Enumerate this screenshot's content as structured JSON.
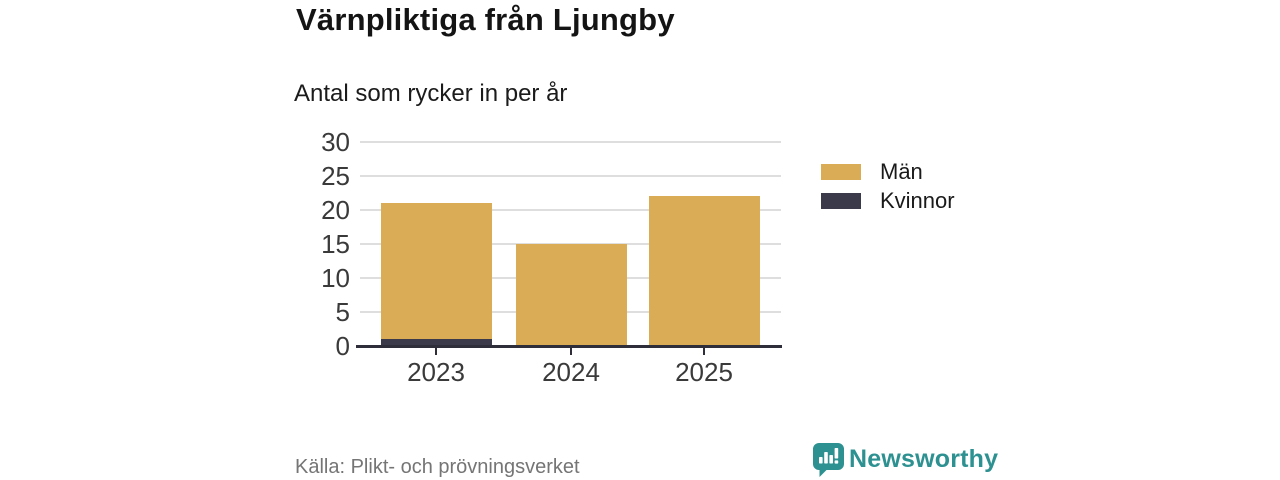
{
  "header": {
    "title": "Värnpliktiga från Ljungby",
    "subtitle": "Antal som rycker in per år"
  },
  "chart_data": {
    "type": "bar",
    "stacked": true,
    "title": "Värnpliktiga från Ljungby",
    "subtitle": "Antal som rycker in per år",
    "categories": [
      "2023",
      "2024",
      "2025"
    ],
    "series": [
      {
        "name": "Män",
        "color": "#D9AC55",
        "values": [
          20,
          15,
          22
        ]
      },
      {
        "name": "Kvinnor",
        "color": "#3B3A4B",
        "values": [
          1,
          0,
          0
        ]
      }
    ],
    "stack_order_bottom_to_top": [
      "Kvinnor",
      "Män"
    ],
    "stack_totals": [
      21,
      15,
      22
    ],
    "yticks": [
      0,
      5,
      10,
      15,
      20,
      25,
      30
    ],
    "ylim": [
      0,
      30
    ],
    "xlabel": "",
    "ylabel": "",
    "grid": "horizontal",
    "legend_position": "right"
  },
  "footer": {
    "source": "Källa: Plikt- och prövningsverket",
    "brand": "Newsworthy"
  },
  "colors": {
    "bar_men": "#D9AC55",
    "bar_women": "#3B3A4B",
    "axis": "#2E2E3A",
    "grid": "#DEDEDE",
    "tick_text": "#3A3A3A",
    "source_text": "#757575",
    "brand_teal": "#2E9191",
    "background": "#FFFFFF"
  }
}
